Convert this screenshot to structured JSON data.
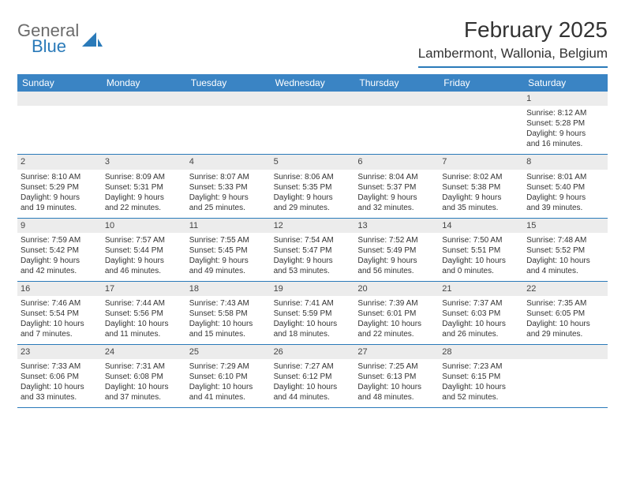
{
  "logo": {
    "word1": "General",
    "word2": "Blue"
  },
  "title": "February 2025",
  "location": "Lambermont, Wallonia, Belgium",
  "colors": {
    "header_bar": "#3a84c4",
    "accent": "#2a7ab9",
    "daynum_bg": "#ececec",
    "text": "#333333",
    "logo_gray": "#6b6b6b",
    "bg": "#ffffff"
  },
  "day_names": [
    "Sunday",
    "Monday",
    "Tuesday",
    "Wednesday",
    "Thursday",
    "Friday",
    "Saturday"
  ],
  "weeks": [
    [
      {
        "n": "",
        "sr": "",
        "ss": "",
        "dl1": "",
        "dl2": ""
      },
      {
        "n": "",
        "sr": "",
        "ss": "",
        "dl1": "",
        "dl2": ""
      },
      {
        "n": "",
        "sr": "",
        "ss": "",
        "dl1": "",
        "dl2": ""
      },
      {
        "n": "",
        "sr": "",
        "ss": "",
        "dl1": "",
        "dl2": ""
      },
      {
        "n": "",
        "sr": "",
        "ss": "",
        "dl1": "",
        "dl2": ""
      },
      {
        "n": "",
        "sr": "",
        "ss": "",
        "dl1": "",
        "dl2": ""
      },
      {
        "n": "1",
        "sr": "Sunrise: 8:12 AM",
        "ss": "Sunset: 5:28 PM",
        "dl1": "Daylight: 9 hours",
        "dl2": "and 16 minutes."
      }
    ],
    [
      {
        "n": "2",
        "sr": "Sunrise: 8:10 AM",
        "ss": "Sunset: 5:29 PM",
        "dl1": "Daylight: 9 hours",
        "dl2": "and 19 minutes."
      },
      {
        "n": "3",
        "sr": "Sunrise: 8:09 AM",
        "ss": "Sunset: 5:31 PM",
        "dl1": "Daylight: 9 hours",
        "dl2": "and 22 minutes."
      },
      {
        "n": "4",
        "sr": "Sunrise: 8:07 AM",
        "ss": "Sunset: 5:33 PM",
        "dl1": "Daylight: 9 hours",
        "dl2": "and 25 minutes."
      },
      {
        "n": "5",
        "sr": "Sunrise: 8:06 AM",
        "ss": "Sunset: 5:35 PM",
        "dl1": "Daylight: 9 hours",
        "dl2": "and 29 minutes."
      },
      {
        "n": "6",
        "sr": "Sunrise: 8:04 AM",
        "ss": "Sunset: 5:37 PM",
        "dl1": "Daylight: 9 hours",
        "dl2": "and 32 minutes."
      },
      {
        "n": "7",
        "sr": "Sunrise: 8:02 AM",
        "ss": "Sunset: 5:38 PM",
        "dl1": "Daylight: 9 hours",
        "dl2": "and 35 minutes."
      },
      {
        "n": "8",
        "sr": "Sunrise: 8:01 AM",
        "ss": "Sunset: 5:40 PM",
        "dl1": "Daylight: 9 hours",
        "dl2": "and 39 minutes."
      }
    ],
    [
      {
        "n": "9",
        "sr": "Sunrise: 7:59 AM",
        "ss": "Sunset: 5:42 PM",
        "dl1": "Daylight: 9 hours",
        "dl2": "and 42 minutes."
      },
      {
        "n": "10",
        "sr": "Sunrise: 7:57 AM",
        "ss": "Sunset: 5:44 PM",
        "dl1": "Daylight: 9 hours",
        "dl2": "and 46 minutes."
      },
      {
        "n": "11",
        "sr": "Sunrise: 7:55 AM",
        "ss": "Sunset: 5:45 PM",
        "dl1": "Daylight: 9 hours",
        "dl2": "and 49 minutes."
      },
      {
        "n": "12",
        "sr": "Sunrise: 7:54 AM",
        "ss": "Sunset: 5:47 PM",
        "dl1": "Daylight: 9 hours",
        "dl2": "and 53 minutes."
      },
      {
        "n": "13",
        "sr": "Sunrise: 7:52 AM",
        "ss": "Sunset: 5:49 PM",
        "dl1": "Daylight: 9 hours",
        "dl2": "and 56 minutes."
      },
      {
        "n": "14",
        "sr": "Sunrise: 7:50 AM",
        "ss": "Sunset: 5:51 PM",
        "dl1": "Daylight: 10 hours",
        "dl2": "and 0 minutes."
      },
      {
        "n": "15",
        "sr": "Sunrise: 7:48 AM",
        "ss": "Sunset: 5:52 PM",
        "dl1": "Daylight: 10 hours",
        "dl2": "and 4 minutes."
      }
    ],
    [
      {
        "n": "16",
        "sr": "Sunrise: 7:46 AM",
        "ss": "Sunset: 5:54 PM",
        "dl1": "Daylight: 10 hours",
        "dl2": "and 7 minutes."
      },
      {
        "n": "17",
        "sr": "Sunrise: 7:44 AM",
        "ss": "Sunset: 5:56 PM",
        "dl1": "Daylight: 10 hours",
        "dl2": "and 11 minutes."
      },
      {
        "n": "18",
        "sr": "Sunrise: 7:43 AM",
        "ss": "Sunset: 5:58 PM",
        "dl1": "Daylight: 10 hours",
        "dl2": "and 15 minutes."
      },
      {
        "n": "19",
        "sr": "Sunrise: 7:41 AM",
        "ss": "Sunset: 5:59 PM",
        "dl1": "Daylight: 10 hours",
        "dl2": "and 18 minutes."
      },
      {
        "n": "20",
        "sr": "Sunrise: 7:39 AM",
        "ss": "Sunset: 6:01 PM",
        "dl1": "Daylight: 10 hours",
        "dl2": "and 22 minutes."
      },
      {
        "n": "21",
        "sr": "Sunrise: 7:37 AM",
        "ss": "Sunset: 6:03 PM",
        "dl1": "Daylight: 10 hours",
        "dl2": "and 26 minutes."
      },
      {
        "n": "22",
        "sr": "Sunrise: 7:35 AM",
        "ss": "Sunset: 6:05 PM",
        "dl1": "Daylight: 10 hours",
        "dl2": "and 29 minutes."
      }
    ],
    [
      {
        "n": "23",
        "sr": "Sunrise: 7:33 AM",
        "ss": "Sunset: 6:06 PM",
        "dl1": "Daylight: 10 hours",
        "dl2": "and 33 minutes."
      },
      {
        "n": "24",
        "sr": "Sunrise: 7:31 AM",
        "ss": "Sunset: 6:08 PM",
        "dl1": "Daylight: 10 hours",
        "dl2": "and 37 minutes."
      },
      {
        "n": "25",
        "sr": "Sunrise: 7:29 AM",
        "ss": "Sunset: 6:10 PM",
        "dl1": "Daylight: 10 hours",
        "dl2": "and 41 minutes."
      },
      {
        "n": "26",
        "sr": "Sunrise: 7:27 AM",
        "ss": "Sunset: 6:12 PM",
        "dl1": "Daylight: 10 hours",
        "dl2": "and 44 minutes."
      },
      {
        "n": "27",
        "sr": "Sunrise: 7:25 AM",
        "ss": "Sunset: 6:13 PM",
        "dl1": "Daylight: 10 hours",
        "dl2": "and 48 minutes."
      },
      {
        "n": "28",
        "sr": "Sunrise: 7:23 AM",
        "ss": "Sunset: 6:15 PM",
        "dl1": "Daylight: 10 hours",
        "dl2": "and 52 minutes."
      },
      {
        "n": "",
        "sr": "",
        "ss": "",
        "dl1": "",
        "dl2": ""
      }
    ]
  ]
}
